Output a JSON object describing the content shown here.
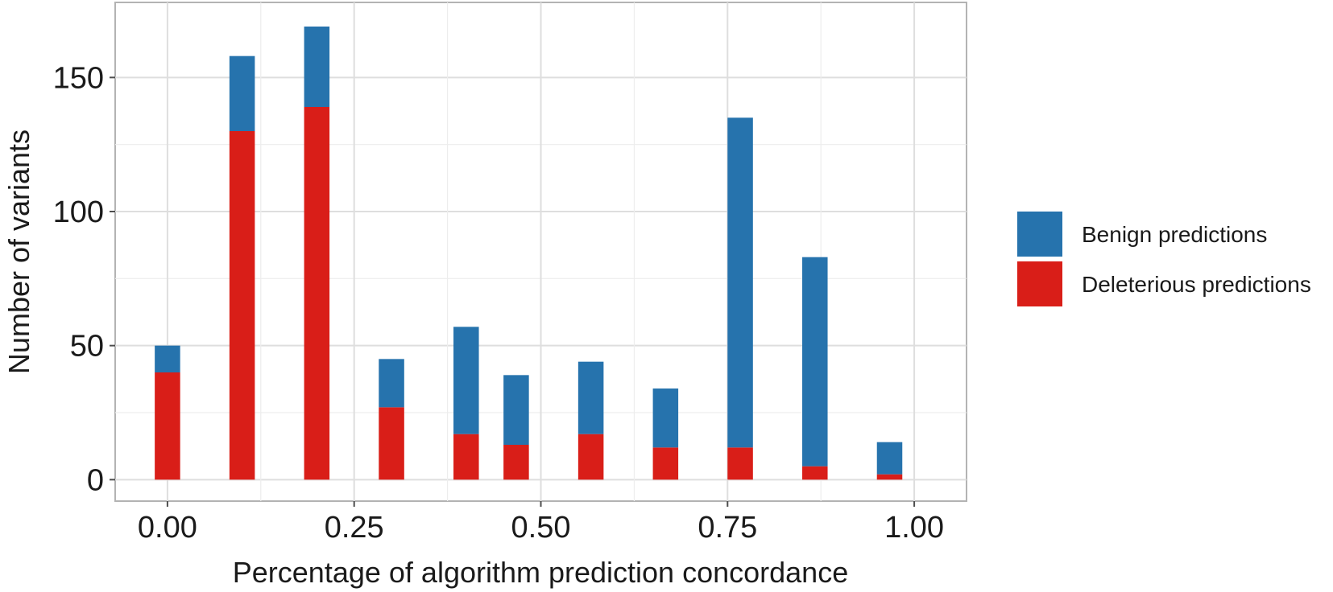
{
  "chart_data": {
    "type": "bar",
    "stacked": true,
    "title": "",
    "xlabel": "Percentage of algorithm prediction concordance",
    "ylabel": "Number of variants",
    "xlim": [
      -0.07,
      1.07
    ],
    "ylim": [
      -8,
      178
    ],
    "x_ticks": [
      {
        "value": 0.0,
        "label": "0.00"
      },
      {
        "value": 0.25,
        "label": "0.25"
      },
      {
        "value": 0.5,
        "label": "0.50"
      },
      {
        "value": 0.75,
        "label": "0.75"
      },
      {
        "value": 1.0,
        "label": "1.00"
      }
    ],
    "y_ticks": [
      {
        "value": 0,
        "label": "0"
      },
      {
        "value": 50,
        "label": "50"
      },
      {
        "value": 100,
        "label": "100"
      },
      {
        "value": 150,
        "label": "150"
      }
    ],
    "grid": true,
    "legend_position": "right",
    "bar_width": 0.034,
    "x": [
      0.0,
      0.1,
      0.2,
      0.3,
      0.4,
      0.467,
      0.567,
      0.667,
      0.767,
      0.867,
      0.967
    ],
    "series": [
      {
        "name": "Deleterious predictions",
        "color": "#d91e18",
        "values": [
          40,
          130,
          139,
          27,
          17,
          13,
          17,
          12,
          12,
          5,
          2
        ]
      },
      {
        "name": "Benign predictions",
        "color": "#2673ad",
        "values": [
          10,
          28,
          30,
          18,
          40,
          26,
          27,
          22,
          123,
          78,
          12
        ]
      }
    ],
    "legend": [
      {
        "name": "Benign predictions",
        "color": "#2673ad"
      },
      {
        "name": "Deleterious predictions",
        "color": "#d91e18"
      }
    ]
  }
}
